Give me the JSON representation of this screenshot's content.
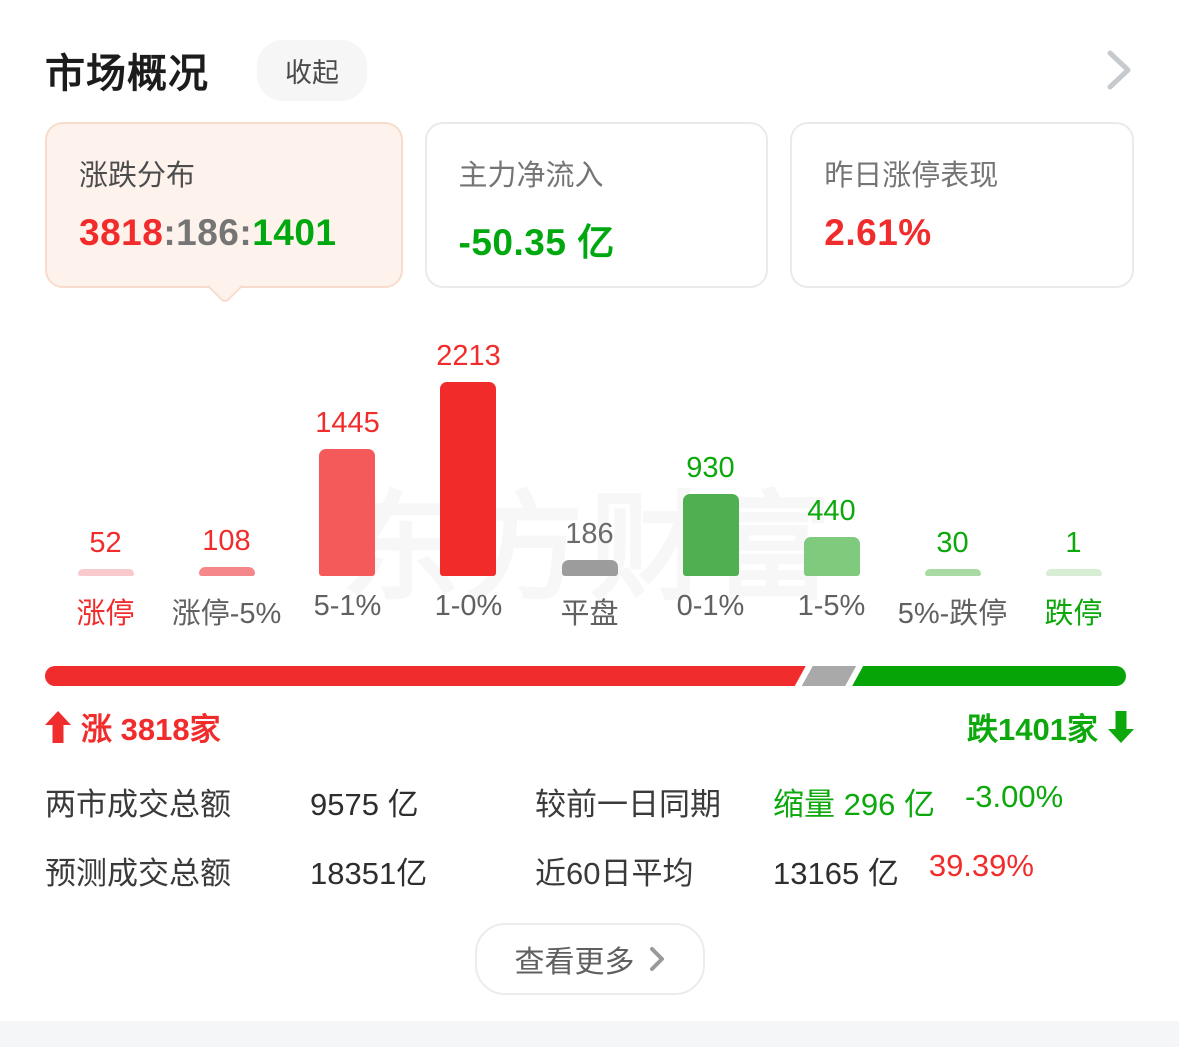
{
  "header": {
    "title": "市场概况",
    "collapse_label": "收起"
  },
  "cards": {
    "distribution": {
      "label": "涨跌分布",
      "up": "3818",
      "sep": ":",
      "flat": "186",
      "down": "1401"
    },
    "main_inflow": {
      "label": "主力净流入",
      "value": "-50.35 亿"
    },
    "yesterday_limit_up": {
      "label": "昨日涨停表现",
      "value": "2.61%"
    }
  },
  "chart_data": {
    "type": "bar",
    "title": "涨跌分布",
    "categories": [
      "涨停",
      "涨停-5%",
      "5-1%",
      "1-0%",
      "平盘",
      "0-1%",
      "1-5%",
      "5%-跌停",
      "跌停"
    ],
    "values": [
      52,
      108,
      1445,
      2213,
      186,
      930,
      440,
      30,
      1
    ],
    "bar_colors": [
      "#f8c9cd",
      "#f5878b",
      "#f55a5a",
      "#f12a2a",
      "#9c9c9c",
      "#4eb050",
      "#7fca7d",
      "#a9daa4",
      "#d7edd4"
    ],
    "value_colors": [
      "#f12c2c",
      "#f12c2c",
      "#f12c2c",
      "#f12c2c",
      "#6b6b6b",
      "#0ca80c",
      "#0ca80c",
      "#0ca80c",
      "#0ca80c"
    ],
    "category_colors": [
      "#f12c2c",
      "#616161",
      "#616161",
      "#616161",
      "#616161",
      "#616161",
      "#616161",
      "#616161",
      "#0ca80c"
    ],
    "ylim": [
      0,
      2213
    ],
    "grid": false,
    "watermark": "东方财富"
  },
  "ratio_bar": {
    "up": 3818,
    "flat": 186,
    "down": 1401,
    "up_color": "#f12c2c",
    "flat_color": "#a9a9a9",
    "down_color": "#06a406"
  },
  "counts": {
    "up_label": "涨 3818家",
    "down_label": "跌1401家"
  },
  "stats": {
    "rows": [
      {
        "label1": "两市成交总额",
        "value1": "9575 亿",
        "label2": "较前一日同期",
        "value2a": "缩量 296 亿",
        "value2b": "-3.00%"
      },
      {
        "label1": "预测成交总额",
        "value1": "18351亿",
        "label2": "近60日平均",
        "value2a": "13165 亿",
        "value2b": "39.39%"
      }
    ]
  },
  "more_button": {
    "label": "查看更多"
  }
}
